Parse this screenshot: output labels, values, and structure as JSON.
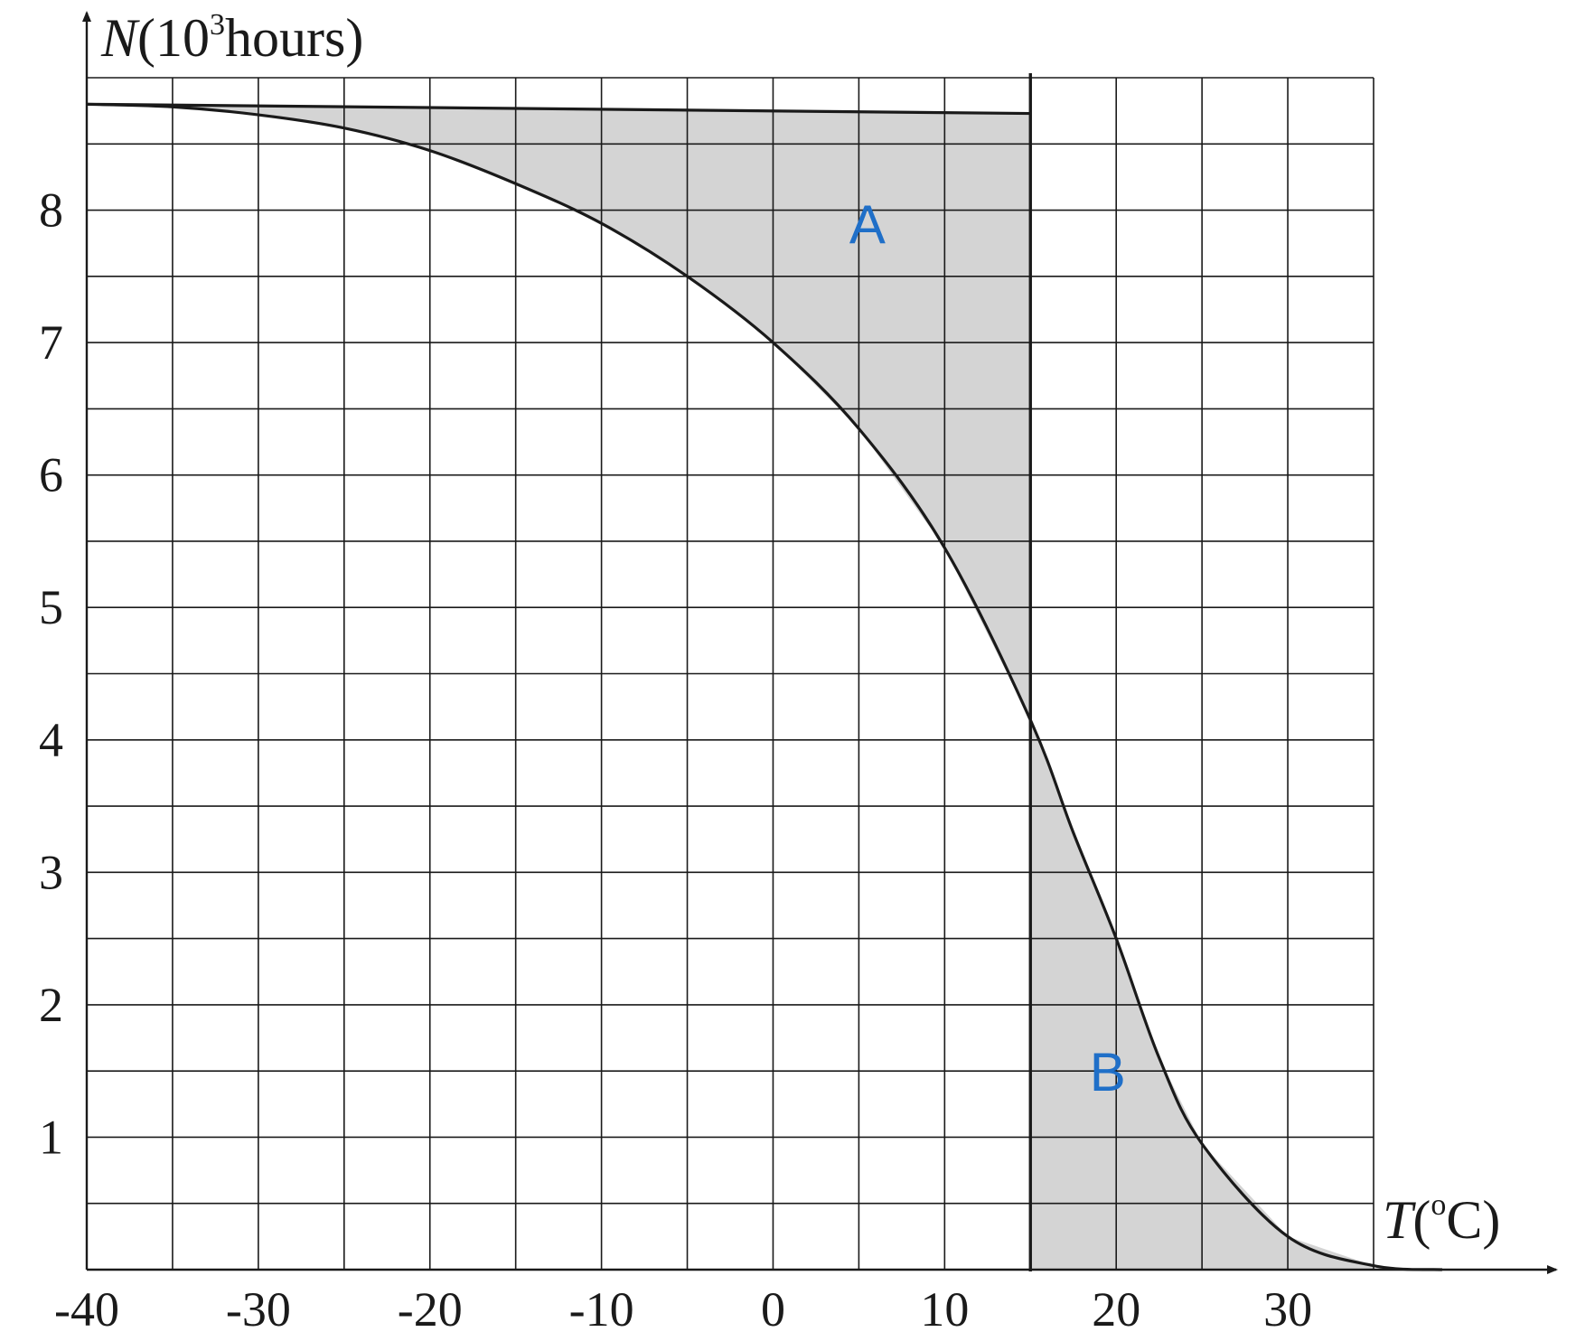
{
  "chart_data": {
    "type": "line",
    "ylabel": {
      "var": "N",
      "open": "(10",
      "sup": "3",
      "close": "hours)"
    },
    "xlabel": {
      "var": "T",
      "open": "(",
      "sup": "o",
      "close": "C)"
    },
    "xlim": [
      -40,
      35
    ],
    "ylim": [
      0,
      9
    ],
    "x_ticks": [
      -40,
      -30,
      -20,
      -10,
      0,
      10,
      20,
      30
    ],
    "x_tick_labels": [
      "-40",
      "-30",
      "-20",
      "-10",
      "0",
      "10",
      "20",
      "30"
    ],
    "y_ticks": [
      1,
      2,
      3,
      4,
      5,
      6,
      7,
      8
    ],
    "y_tick_labels": [
      "1",
      "2",
      "3",
      "4",
      "5",
      "6",
      "7",
      "8"
    ],
    "x_grid_step": 5,
    "y_grid_step": 0.5,
    "grid": true,
    "series": [
      {
        "x": [
          -40,
          -35,
          -30,
          -25,
          -20,
          -15,
          -10,
          -5,
          0,
          5,
          10,
          15,
          17.5,
          20,
          22.5,
          25,
          30,
          35,
          39
        ],
        "values": [
          8.8,
          8.78,
          8.72,
          8.62,
          8.45,
          8.2,
          7.9,
          7.5,
          7.0,
          6.35,
          5.45,
          4.15,
          3.3,
          2.5,
          1.6,
          0.95,
          0.25,
          0.03,
          0.0
        ]
      },
      {
        "x": [
          -40,
          15
        ],
        "values": [
          8.8,
          8.73
        ]
      }
    ],
    "vertical_line_x": 15,
    "shaded_regions": [
      {
        "label": "A",
        "x_range": [
          -40,
          15
        ],
        "between": "upper line and curve"
      },
      {
        "label": "B",
        "x_range": [
          15,
          35
        ],
        "between": "curve and T axis"
      }
    ],
    "annotations": [
      {
        "text": "A",
        "x": 5.5,
        "y": 7.75
      },
      {
        "text": "B",
        "x": 19.5,
        "y": 1.35
      }
    ],
    "colors": {
      "line": "#1a1a1a",
      "shade": "#d4d4d4",
      "annotation": "#1f6fc8"
    }
  }
}
